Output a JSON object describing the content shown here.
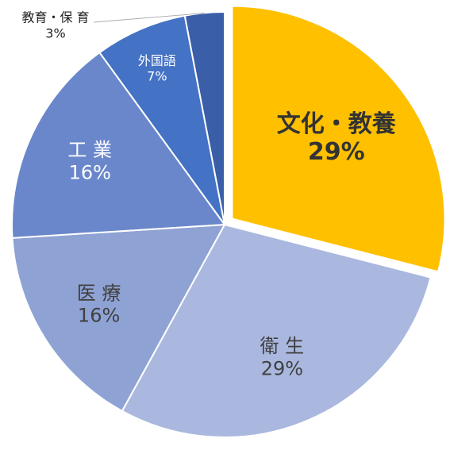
{
  "chart_data": {
    "type": "pie",
    "categories": [
      "文化・教養",
      "衛 生",
      "医 療",
      "工 業",
      "外国語",
      "教育・保 育"
    ],
    "values": [
      29,
      29,
      16,
      16,
      7,
      3
    ],
    "value_labels": [
      "29%",
      "29%",
      "16%",
      "16%",
      "7%",
      "3%"
    ],
    "colors": [
      "#ffc000",
      "#aab8df",
      "#8ea2d4",
      "#6a87cb",
      "#4472c4",
      "#3a5ea8"
    ]
  }
}
